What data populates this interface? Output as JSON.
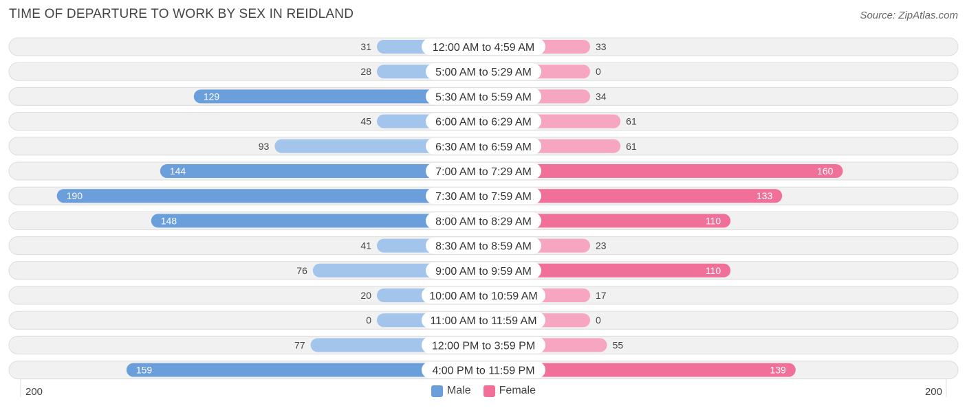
{
  "title": "TIME OF DEPARTURE TO WORK BY SEX IN REIDLAND",
  "source": "Source: ZipAtlas.com",
  "colors": {
    "male_strong": "#6a9fdc",
    "male_light": "#a4c5eb",
    "female_strong": "#f07099",
    "female_light": "#f6a6c1",
    "row_bg": "#f1f1f1",
    "row_border": "#dcdcdc"
  },
  "legend": {
    "male": "Male",
    "female": "Female"
  },
  "axis": {
    "left_label": "200",
    "right_label": "200"
  },
  "chart_data": {
    "type": "bar",
    "orientation": "horizontal-diverging",
    "title": "TIME OF DEPARTURE TO WORK BY SEX IN REIDLAND",
    "xlim": [
      0,
      200
    ],
    "legend_position": "bottom-center",
    "categories": [
      "12:00 AM to 4:59 AM",
      "5:00 AM to 5:29 AM",
      "5:30 AM to 5:59 AM",
      "6:00 AM to 6:29 AM",
      "6:30 AM to 6:59 AM",
      "7:00 AM to 7:29 AM",
      "7:30 AM to 7:59 AM",
      "8:00 AM to 8:29 AM",
      "8:30 AM to 8:59 AM",
      "9:00 AM to 9:59 AM",
      "10:00 AM to 10:59 AM",
      "11:00 AM to 11:59 AM",
      "12:00 PM to 3:59 PM",
      "4:00 PM to 11:59 PM"
    ],
    "series": [
      {
        "name": "Male",
        "values": [
          31,
          28,
          129,
          45,
          93,
          144,
          190,
          148,
          41,
          76,
          20,
          0,
          77,
          159
        ]
      },
      {
        "name": "Female",
        "values": [
          33,
          0,
          34,
          61,
          61,
          160,
          133,
          110,
          23,
          110,
          17,
          0,
          55,
          139
        ]
      }
    ]
  }
}
